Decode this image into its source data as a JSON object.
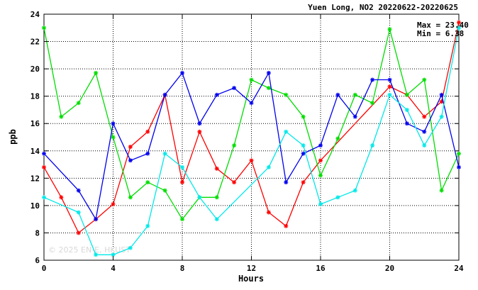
{
  "chart_data": {
    "type": "line",
    "title": "Yuen Long, NO2 20220622-20220625",
    "xlabel": "Hours",
    "ylabel": "ppb",
    "xlim": [
      0,
      24
    ],
    "ylim": [
      6,
      24
    ],
    "x_ticks": [
      0,
      4,
      8,
      12,
      16,
      20,
      24
    ],
    "y_ticks": [
      6,
      8,
      10,
      12,
      14,
      16,
      18,
      20,
      22,
      24
    ],
    "grid": true,
    "stats": {
      "max_label": "Max = 23.40",
      "min_label": "Min =  6.38"
    },
    "watermark": "© 2025  EN-E, HKUST",
    "series": [
      {
        "color": "#ff0000",
        "points": [
          [
            0,
            12.8
          ],
          [
            1,
            10.6
          ],
          [
            2,
            8.0
          ],
          [
            3,
            9.0
          ],
          [
            4,
            10.1
          ],
          [
            5,
            14.3
          ],
          [
            6,
            15.4
          ],
          [
            7,
            18.1
          ],
          [
            8,
            11.7
          ],
          [
            9,
            15.4
          ],
          [
            10,
            12.7
          ],
          [
            11,
            11.7
          ],
          [
            12,
            13.3
          ],
          [
            13,
            9.5
          ],
          [
            14,
            8.5
          ],
          [
            15,
            11.7
          ],
          [
            16,
            13.3
          ],
          [
            20,
            18.7
          ],
          [
            21,
            18.1
          ],
          [
            22,
            16.5
          ],
          [
            23,
            17.6
          ],
          [
            24,
            23.4
          ]
        ]
      },
      {
        "color": "#00dd00",
        "points": [
          [
            0,
            23.0
          ],
          [
            1,
            16.5
          ],
          [
            2,
            17.5
          ],
          [
            3,
            19.7
          ],
          [
            4,
            15.0
          ],
          [
            5,
            10.6
          ],
          [
            6,
            11.7
          ],
          [
            7,
            11.1
          ],
          [
            8,
            9.0
          ],
          [
            9,
            10.6
          ],
          [
            10,
            10.6
          ],
          [
            11,
            14.4
          ],
          [
            12,
            19.2
          ],
          [
            13,
            18.6
          ],
          [
            14,
            18.1
          ],
          [
            15,
            16.5
          ],
          [
            16,
            12.2
          ],
          [
            17,
            14.9
          ],
          [
            18,
            18.1
          ],
          [
            19,
            17.5
          ],
          [
            20,
            22.9
          ],
          [
            21,
            18.1
          ],
          [
            22,
            19.2
          ],
          [
            23,
            11.1
          ],
          [
            24,
            13.8
          ]
        ]
      },
      {
        "color": "#0000ee",
        "points": [
          [
            0,
            13.8
          ],
          [
            2,
            11.1
          ],
          [
            3,
            9.0
          ],
          [
            4,
            16.0
          ],
          [
            5,
            13.3
          ],
          [
            6,
            13.8
          ],
          [
            7,
            18.1
          ],
          [
            8,
            19.7
          ],
          [
            9,
            16.0
          ],
          [
            10,
            18.1
          ],
          [
            11,
            18.6
          ],
          [
            12,
            17.5
          ],
          [
            13,
            19.7
          ],
          [
            14,
            11.7
          ],
          [
            15,
            13.8
          ],
          [
            16,
            14.4
          ],
          [
            17,
            18.1
          ],
          [
            18,
            16.5
          ],
          [
            19,
            19.2
          ],
          [
            20,
            19.2
          ],
          [
            21,
            16.0
          ],
          [
            22,
            15.4
          ],
          [
            23,
            18.1
          ],
          [
            24,
            12.8
          ]
        ]
      },
      {
        "color": "#00e8e8",
        "points": [
          [
            0,
            10.6
          ],
          [
            2,
            9.5
          ],
          [
            3,
            6.4
          ],
          [
            4,
            6.4
          ],
          [
            5,
            6.9
          ],
          [
            6,
            8.5
          ],
          [
            7,
            13.8
          ],
          [
            8,
            12.8
          ],
          [
            9,
            10.6
          ],
          [
            10,
            9.0
          ],
          [
            13,
            12.8
          ],
          [
            14,
            15.4
          ],
          [
            15,
            14.4
          ],
          [
            16,
            10.1
          ],
          [
            17,
            10.6
          ],
          [
            18,
            11.1
          ],
          [
            19,
            14.4
          ],
          [
            20,
            18.1
          ],
          [
            21,
            17.0
          ],
          [
            22,
            14.4
          ],
          [
            23,
            16.5
          ],
          [
            24,
            23.0
          ]
        ]
      }
    ]
  }
}
